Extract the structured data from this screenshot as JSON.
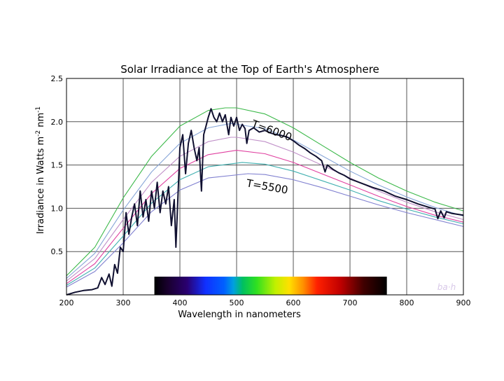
{
  "chart_data": {
    "type": "line",
    "title": "Solar Irradiance at the Top of Earth's Atmosphere",
    "xlabel": "Wavelength in nanometers",
    "ylabel_main": "Irradiance in Watts m",
    "ylabel_sup1": "-2",
    "ylabel_mid": " nm",
    "ylabel_sup2": "-1",
    "xlim": [
      200,
      900
    ],
    "ylim": [
      0,
      2.5
    ],
    "x_ticks": [
      200,
      300,
      400,
      500,
      600,
      700,
      800,
      900
    ],
    "y_ticks": [
      0.5,
      1.0,
      1.5,
      2.0,
      2.5
    ],
    "x_tick_labels": [
      "200",
      "300",
      "400",
      "500",
      "600",
      "700",
      "800",
      "900"
    ],
    "y_tick_labels": [
      "0.5",
      "1.0",
      "1.5",
      "2.0",
      "2.5"
    ],
    "grid": true,
    "annotations": [
      {
        "text": "T=6000",
        "x": 560,
        "y": 1.86
      },
      {
        "text": "T=5500",
        "x": 553,
        "y": 1.21
      }
    ],
    "watermark": "ba·h",
    "spectrum_band": {
      "x_start": 355,
      "x_end": 765
    },
    "series": [
      {
        "color": "#3cb94a",
        "values": [
          [
            200,
            0.22
          ],
          [
            250,
            0.55
          ],
          [
            300,
            1.12
          ],
          [
            350,
            1.6
          ],
          [
            400,
            1.95
          ],
          [
            450,
            2.13
          ],
          [
            480,
            2.16
          ],
          [
            500,
            2.16
          ],
          [
            550,
            2.09
          ],
          [
            600,
            1.93
          ],
          [
            650,
            1.73
          ],
          [
            700,
            1.53
          ],
          [
            750,
            1.35
          ],
          [
            800,
            1.2
          ],
          [
            850,
            1.07
          ],
          [
            900,
            0.97
          ]
        ]
      },
      {
        "color": "#88a6d8",
        "values": [
          [
            200,
            0.19
          ],
          [
            250,
            0.48
          ],
          [
            300,
            0.98
          ],
          [
            350,
            1.42
          ],
          [
            400,
            1.75
          ],
          [
            450,
            1.93
          ],
          [
            490,
            1.98
          ],
          [
            500,
            1.97
          ],
          [
            550,
            1.92
          ],
          [
            600,
            1.79
          ],
          [
            650,
            1.61
          ],
          [
            700,
            1.43
          ],
          [
            750,
            1.27
          ],
          [
            800,
            1.13
          ],
          [
            850,
            1.01
          ],
          [
            900,
            0.91
          ]
        ]
      },
      {
        "color": "#c090c8",
        "values": [
          [
            200,
            0.16
          ],
          [
            250,
            0.42
          ],
          [
            300,
            0.87
          ],
          [
            350,
            1.3
          ],
          [
            400,
            1.6
          ],
          [
            450,
            1.77
          ],
          [
            490,
            1.82
          ],
          [
            500,
            1.82
          ],
          [
            550,
            1.77
          ],
          [
            600,
            1.65
          ],
          [
            650,
            1.5
          ],
          [
            700,
            1.35
          ],
          [
            750,
            1.2
          ],
          [
            800,
            1.07
          ],
          [
            850,
            0.96
          ],
          [
            900,
            0.87
          ]
        ]
      },
      {
        "color": "#e040a0",
        "values": [
          [
            200,
            0.13
          ],
          [
            250,
            0.36
          ],
          [
            300,
            0.77
          ],
          [
            350,
            1.17
          ],
          [
            400,
            1.46
          ],
          [
            450,
            1.62
          ],
          [
            500,
            1.67
          ],
          [
            550,
            1.63
          ],
          [
            600,
            1.53
          ],
          [
            650,
            1.4
          ],
          [
            700,
            1.27
          ],
          [
            750,
            1.14
          ],
          [
            800,
            1.02
          ],
          [
            850,
            0.92
          ],
          [
            900,
            0.84
          ]
        ]
      },
      {
        "color": "#40b0b0",
        "values": [
          [
            200,
            0.11
          ],
          [
            250,
            0.31
          ],
          [
            300,
            0.68
          ],
          [
            350,
            1.06
          ],
          [
            400,
            1.33
          ],
          [
            450,
            1.48
          ],
          [
            510,
            1.53
          ],
          [
            550,
            1.51
          ],
          [
            600,
            1.43
          ],
          [
            650,
            1.32
          ],
          [
            700,
            1.21
          ],
          [
            750,
            1.09
          ],
          [
            800,
            0.99
          ],
          [
            850,
            0.9
          ],
          [
            900,
            0.82
          ]
        ]
      },
      {
        "color": "#8080d0",
        "values": [
          [
            200,
            0.09
          ],
          [
            250,
            0.27
          ],
          [
            300,
            0.6
          ],
          [
            350,
            0.96
          ],
          [
            400,
            1.21
          ],
          [
            450,
            1.35
          ],
          [
            520,
            1.4
          ],
          [
            550,
            1.39
          ],
          [
            600,
            1.33
          ],
          [
            650,
            1.24
          ],
          [
            700,
            1.14
          ],
          [
            750,
            1.04
          ],
          [
            800,
            0.95
          ],
          [
            850,
            0.87
          ],
          [
            900,
            0.79
          ]
        ]
      },
      {
        "color": "#101030",
        "values": [
          [
            200,
            0.0
          ],
          [
            215,
            0.03
          ],
          [
            230,
            0.05
          ],
          [
            245,
            0.06
          ],
          [
            255,
            0.08
          ],
          [
            262,
            0.2
          ],
          [
            268,
            0.12
          ],
          [
            275,
            0.24
          ],
          [
            280,
            0.1
          ],
          [
            285,
            0.35
          ],
          [
            290,
            0.25
          ],
          [
            295,
            0.55
          ],
          [
            300,
            0.5
          ],
          [
            305,
            0.95
          ],
          [
            310,
            0.7
          ],
          [
            315,
            0.9
          ],
          [
            320,
            1.05
          ],
          [
            325,
            0.8
          ],
          [
            330,
            1.2
          ],
          [
            335,
            0.9
          ],
          [
            340,
            1.1
          ],
          [
            345,
            0.85
          ],
          [
            350,
            1.2
          ],
          [
            355,
            1.0
          ],
          [
            360,
            1.3
          ],
          [
            365,
            0.95
          ],
          [
            370,
            1.2
          ],
          [
            375,
            1.05
          ],
          [
            380,
            1.25
          ],
          [
            385,
            0.8
          ],
          [
            390,
            1.1
          ],
          [
            393,
            0.55
          ],
          [
            396,
            1.05
          ],
          [
            400,
            1.7
          ],
          [
            405,
            1.85
          ],
          [
            410,
            1.4
          ],
          [
            415,
            1.75
          ],
          [
            420,
            1.9
          ],
          [
            425,
            1.7
          ],
          [
            430,
            1.55
          ],
          [
            434,
            1.7
          ],
          [
            438,
            1.2
          ],
          [
            442,
            1.85
          ],
          [
            446,
            1.95
          ],
          [
            450,
            2.05
          ],
          [
            455,
            2.15
          ],
          [
            460,
            2.05
          ],
          [
            465,
            2.0
          ],
          [
            470,
            2.1
          ],
          [
            475,
            2.0
          ],
          [
            480,
            2.08
          ],
          [
            486,
            1.85
          ],
          [
            490,
            2.05
          ],
          [
            495,
            1.95
          ],
          [
            500,
            2.05
          ],
          [
            505,
            1.9
          ],
          [
            510,
            1.97
          ],
          [
            515,
            1.92
          ],
          [
            518,
            1.75
          ],
          [
            522,
            1.9
          ],
          [
            530,
            1.93
          ],
          [
            540,
            1.88
          ],
          [
            550,
            1.9
          ],
          [
            560,
            1.87
          ],
          [
            570,
            1.85
          ],
          [
            580,
            1.84
          ],
          [
            590,
            1.82
          ],
          [
            600,
            1.78
          ],
          [
            610,
            1.73
          ],
          [
            620,
            1.69
          ],
          [
            630,
            1.64
          ],
          [
            640,
            1.6
          ],
          [
            650,
            1.55
          ],
          [
            656,
            1.42
          ],
          [
            660,
            1.5
          ],
          [
            670,
            1.45
          ],
          [
            680,
            1.41
          ],
          [
            690,
            1.38
          ],
          [
            700,
            1.34
          ],
          [
            720,
            1.29
          ],
          [
            740,
            1.24
          ],
          [
            760,
            1.2
          ],
          [
            780,
            1.14
          ],
          [
            800,
            1.1
          ],
          [
            820,
            1.05
          ],
          [
            840,
            1.01
          ],
          [
            850,
            0.99
          ],
          [
            855,
            0.88
          ],
          [
            860,
            0.97
          ],
          [
            866,
            0.89
          ],
          [
            870,
            0.96
          ],
          [
            880,
            0.94
          ],
          [
            900,
            0.92
          ]
        ]
      }
    ]
  }
}
